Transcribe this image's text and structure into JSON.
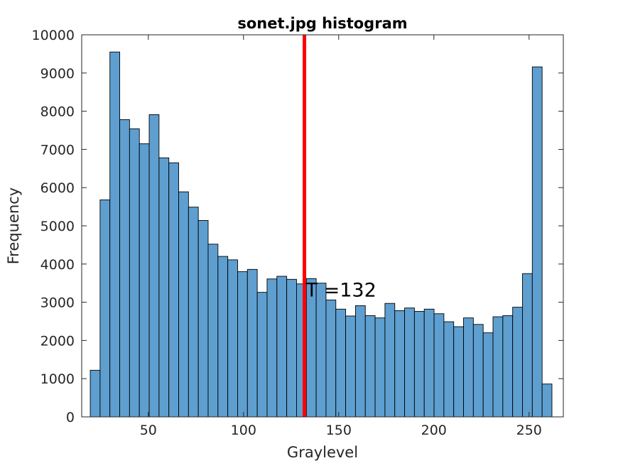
{
  "chart_data": {
    "type": "bar",
    "title": "sonet.jpg histogram",
    "xlabel": "Graylevel",
    "ylabel": "Frequency",
    "xlim": [
      15,
      268
    ],
    "ylim": [
      0,
      10000
    ],
    "xticks": [
      50,
      100,
      150,
      200,
      250
    ],
    "yticks": [
      0,
      1000,
      2000,
      3000,
      4000,
      5000,
      6000,
      7000,
      8000,
      9000,
      10000
    ],
    "bin_width": 5.16,
    "bin_start": 19.5,
    "values": [
      1220,
      5680,
      9550,
      7780,
      7540,
      7150,
      7910,
      6780,
      6650,
      5890,
      5490,
      5140,
      4520,
      4200,
      4110,
      3800,
      3860,
      3260,
      3610,
      3680,
      3600,
      3480,
      3620,
      3500,
      3060,
      2820,
      2640,
      2910,
      2650,
      2590,
      2970,
      2780,
      2850,
      2760,
      2820,
      2700,
      2490,
      2360,
      2590,
      2420,
      2200,
      2620,
      2650,
      2870,
      3750,
      9160,
      860
    ],
    "bar_color": "#5e9fd0",
    "threshold": {
      "x": 132,
      "color": "#ff0000",
      "label": "T =132"
    }
  }
}
